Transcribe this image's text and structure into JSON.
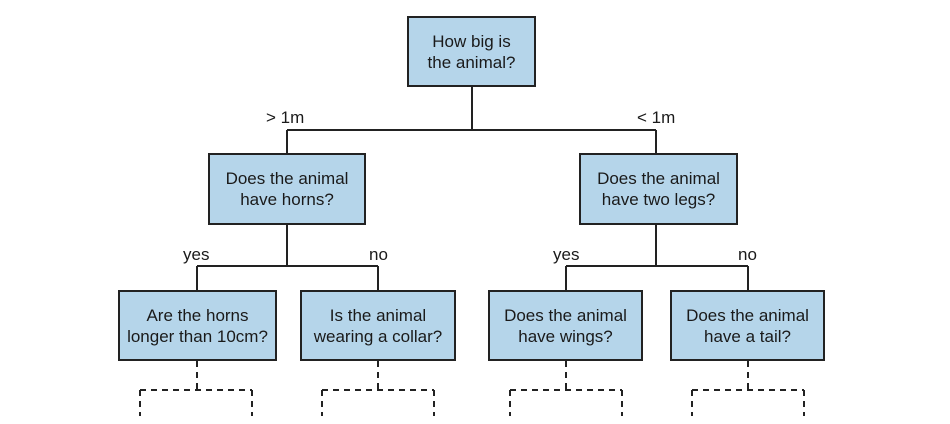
{
  "colors": {
    "node_fill": "#b5d5ea",
    "node_border": "#222222",
    "line": "#222222"
  },
  "root": {
    "question": "How big is\nthe animal?"
  },
  "branches": {
    "left_label": "> 1m",
    "right_label": "< 1m"
  },
  "left": {
    "question": "Does the animal\nhave horns?",
    "yes_label": "yes",
    "no_label": "no",
    "yes_child": "Are the horns\nlonger than 10cm?",
    "no_child": "Is the animal\nwearing a collar?"
  },
  "right": {
    "question": "Does the animal\nhave two legs?",
    "yes_label": "yes",
    "no_label": "no",
    "yes_child": "Does the animal\nhave wings?",
    "no_child": "Does the animal\nhave a tail?"
  }
}
